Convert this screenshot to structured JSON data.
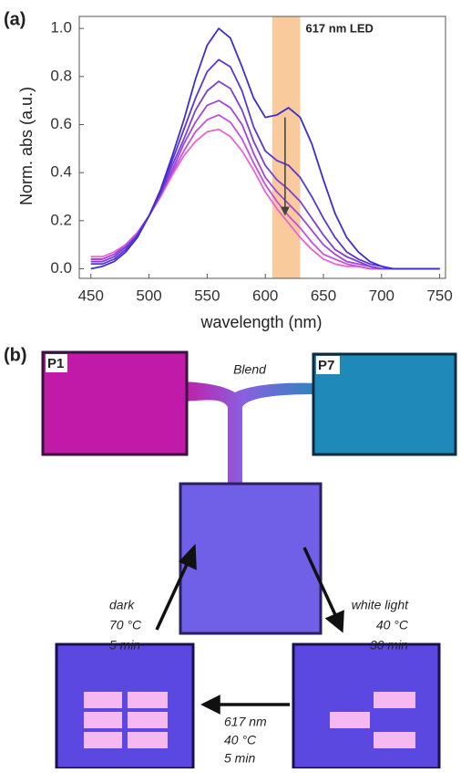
{
  "chart_data": {
    "type": "line",
    "panel_label": "(a)",
    "xlabel": "wavelength (nm)",
    "ylabel": "Norm. abs (a.u.)",
    "x": [
      450,
      460,
      470,
      480,
      490,
      500,
      510,
      520,
      530,
      540,
      550,
      560,
      570,
      580,
      590,
      600,
      610,
      620,
      630,
      640,
      650,
      660,
      670,
      680,
      690,
      700,
      710,
      720,
      730,
      740,
      750
    ],
    "series": [
      {
        "color": "#3b2fcf",
        "values": [
          0.0,
          0.01,
          0.03,
          0.07,
          0.13,
          0.22,
          0.33,
          0.47,
          0.62,
          0.79,
          0.93,
          1.0,
          0.96,
          0.84,
          0.71,
          0.63,
          0.64,
          0.67,
          0.63,
          0.52,
          0.37,
          0.23,
          0.13,
          0.07,
          0.03,
          0.01,
          0,
          0,
          0,
          0,
          0
        ]
      },
      {
        "color": "#5a36d2",
        "values": [
          0.02,
          0.02,
          0.04,
          0.08,
          0.14,
          0.22,
          0.32,
          0.45,
          0.58,
          0.71,
          0.82,
          0.87,
          0.84,
          0.74,
          0.59,
          0.49,
          0.45,
          0.43,
          0.38,
          0.3,
          0.21,
          0.13,
          0.07,
          0.04,
          0.02,
          0.01,
          0,
          0,
          0,
          0,
          0
        ]
      },
      {
        "color": "#7b3fd6",
        "values": [
          0.03,
          0.03,
          0.05,
          0.09,
          0.14,
          0.22,
          0.31,
          0.43,
          0.54,
          0.66,
          0.74,
          0.78,
          0.75,
          0.66,
          0.53,
          0.43,
          0.37,
          0.33,
          0.28,
          0.21,
          0.14,
          0.08,
          0.05,
          0.03,
          0.01,
          0,
          0,
          0,
          0,
          0,
          0
        ]
      },
      {
        "color": "#a047da",
        "values": [
          0.04,
          0.04,
          0.06,
          0.09,
          0.14,
          0.22,
          0.31,
          0.41,
          0.52,
          0.61,
          0.68,
          0.7,
          0.67,
          0.6,
          0.48,
          0.38,
          0.32,
          0.27,
          0.22,
          0.16,
          0.1,
          0.06,
          0.03,
          0.02,
          0.01,
          0,
          0,
          0,
          0,
          0,
          0
        ]
      },
      {
        "color": "#c74fdc",
        "values": [
          0.04,
          0.04,
          0.06,
          0.1,
          0.15,
          0.22,
          0.31,
          0.4,
          0.49,
          0.57,
          0.62,
          0.64,
          0.61,
          0.54,
          0.44,
          0.35,
          0.28,
          0.22,
          0.17,
          0.11,
          0.06,
          0.04,
          0.02,
          0.01,
          0,
          0,
          0,
          0,
          0,
          0,
          0
        ]
      },
      {
        "color": "#ea62d6",
        "values": [
          0.05,
          0.05,
          0.07,
          0.1,
          0.15,
          0.22,
          0.3,
          0.39,
          0.47,
          0.53,
          0.57,
          0.58,
          0.55,
          0.49,
          0.41,
          0.32,
          0.25,
          0.19,
          0.13,
          0.08,
          0.04,
          0.02,
          0.01,
          0.01,
          0,
          0,
          0,
          0,
          0,
          0,
          0
        ]
      }
    ],
    "xlim": [
      440,
      755
    ],
    "ylim": [
      -0.04,
      1.05
    ],
    "xticks": [
      450,
      500,
      550,
      600,
      650,
      700,
      750
    ],
    "yticks": [
      {
        "value": 0,
        "label": "0.0"
      },
      0.2,
      0.4,
      0.6,
      0.8,
      {
        "value": 1,
        "label": "1.0"
      }
    ],
    "highlight": {
      "range": [
        606,
        630
      ],
      "color": "#f9cb9c",
      "label": "617 nm LED"
    },
    "arrow": {
      "x": 617,
      "y": [
        0.63,
        0.22
      ]
    }
  },
  "diagram": {
    "panel_label": "(b)",
    "left_film": "P1",
    "right_film": "P7",
    "merge": "Blend",
    "step_left": [
      "dark",
      "70 °C",
      "5 min"
    ],
    "step_right": [
      "white light",
      "40 °C",
      "30 min"
    ],
    "step_bottom": [
      "617 nm",
      "40 °C",
      "5  min"
    ]
  }
}
